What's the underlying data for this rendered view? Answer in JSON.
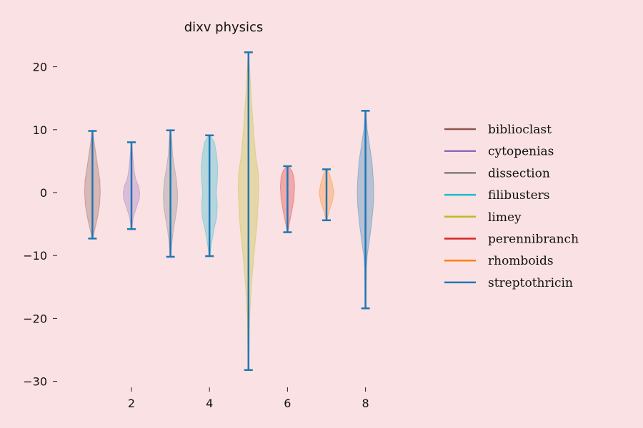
{
  "chart_data": {
    "type": "violin",
    "title": "dixv physics",
    "xlabel": "",
    "ylabel": "",
    "xlim": [
      0,
      10
    ],
    "ylim": [
      -30,
      22
    ],
    "x_ticks": [
      2,
      4,
      6,
      8
    ],
    "y_ticks": [
      20,
      10,
      0,
      -10,
      -20,
      -30
    ],
    "y_tick_labels": [
      "20",
      "10",
      "0",
      "−10",
      "−20",
      "−30"
    ],
    "grid": false,
    "legend_position": "right",
    "error_bar_color": "#1f77b4",
    "violins": [
      {
        "position": 1,
        "min": -7.3,
        "max": 9.8,
        "color": "#8c564b",
        "profile": [
          [
            -7.3,
            0.02
          ],
          [
            -6,
            0.15
          ],
          [
            -4,
            0.35
          ],
          [
            -2,
            0.5
          ],
          [
            0,
            0.55
          ],
          [
            2,
            0.52
          ],
          [
            4,
            0.38
          ],
          [
            6,
            0.25
          ],
          [
            8,
            0.12
          ],
          [
            9.8,
            0.02
          ]
        ]
      },
      {
        "position": 2,
        "min": -5.8,
        "max": 8.0,
        "color": "#9467bd",
        "profile": [
          [
            -5.8,
            0.02
          ],
          [
            -4,
            0.12
          ],
          [
            -2,
            0.4
          ],
          [
            -1,
            0.55
          ],
          [
            0,
            0.58
          ],
          [
            1,
            0.5
          ],
          [
            2,
            0.32
          ],
          [
            3,
            0.22
          ],
          [
            5,
            0.12
          ],
          [
            8.0,
            0.02
          ]
        ]
      },
      {
        "position": 3,
        "min": -10.2,
        "max": 9.9,
        "color": "#7f7f7f",
        "profile": [
          [
            -10.2,
            0.02
          ],
          [
            -8,
            0.1
          ],
          [
            -6,
            0.2
          ],
          [
            -4,
            0.35
          ],
          [
            -2,
            0.48
          ],
          [
            0,
            0.5
          ],
          [
            2,
            0.42
          ],
          [
            4,
            0.28
          ],
          [
            6,
            0.15
          ],
          [
            8,
            0.1
          ],
          [
            9.9,
            0.02
          ]
        ]
      },
      {
        "position": 4,
        "min": -10.1,
        "max": 9.1,
        "color": "#17becf",
        "profile": [
          [
            -10.1,
            0.02
          ],
          [
            -8,
            0.15
          ],
          [
            -6,
            0.3
          ],
          [
            -4,
            0.5
          ],
          [
            -2,
            0.55
          ],
          [
            0,
            0.48
          ],
          [
            2,
            0.55
          ],
          [
            4,
            0.58
          ],
          [
            6,
            0.5
          ],
          [
            8,
            0.35
          ],
          [
            9.1,
            0.05
          ]
        ]
      },
      {
        "position": 5,
        "min": -28.2,
        "max": 22.3,
        "color": "#bcbd22",
        "profile": [
          [
            -28.2,
            0.02
          ],
          [
            -24,
            0.05
          ],
          [
            -20,
            0.08
          ],
          [
            -15,
            0.2
          ],
          [
            -10,
            0.38
          ],
          [
            -5,
            0.6
          ],
          [
            0,
            0.72
          ],
          [
            3,
            0.7
          ],
          [
            6,
            0.5
          ],
          [
            10,
            0.35
          ],
          [
            15,
            0.2
          ],
          [
            19,
            0.1
          ],
          [
            22.3,
            0.02
          ]
        ]
      },
      {
        "position": 6,
        "min": -6.3,
        "max": 4.2,
        "color": "#d62728",
        "profile": [
          [
            -6.3,
            0.02
          ],
          [
            -5,
            0.12
          ],
          [
            -3,
            0.3
          ],
          [
            -1,
            0.45
          ],
          [
            1,
            0.5
          ],
          [
            2.5,
            0.45
          ],
          [
            3.5,
            0.3
          ],
          [
            4.2,
            0.05
          ]
        ]
      },
      {
        "position": 7,
        "min": -4.4,
        "max": 3.7,
        "color": "#ff7f0e",
        "profile": [
          [
            -4.4,
            0.02
          ],
          [
            -3,
            0.18
          ],
          [
            -1.5,
            0.4
          ],
          [
            0,
            0.52
          ],
          [
            1.5,
            0.4
          ],
          [
            3,
            0.2
          ],
          [
            3.7,
            0.03
          ]
        ]
      },
      {
        "position": 8,
        "min": -18.4,
        "max": 13.0,
        "color": "#1f77b4",
        "profile": [
          [
            -18.4,
            0.02
          ],
          [
            -15,
            0.04
          ],
          [
            -12,
            0.06
          ],
          [
            -10,
            0.12
          ],
          [
            -8,
            0.25
          ],
          [
            -5,
            0.42
          ],
          [
            -2,
            0.55
          ],
          [
            0,
            0.58
          ],
          [
            2,
            0.55
          ],
          [
            5,
            0.45
          ],
          [
            8,
            0.25
          ],
          [
            10,
            0.12
          ],
          [
            13.0,
            0.02
          ]
        ]
      }
    ],
    "legend": [
      {
        "label": "biblioclast",
        "color": "#8c564b"
      },
      {
        "label": "cytopenias",
        "color": "#9467bd"
      },
      {
        "label": "dissection",
        "color": "#7f7f7f"
      },
      {
        "label": "filibusters",
        "color": "#17becf"
      },
      {
        "label": "limey",
        "color": "#bcbd22"
      },
      {
        "label": "perennibranch",
        "color": "#d62728"
      },
      {
        "label": "rhomboids",
        "color": "#ff7f0e"
      },
      {
        "label": "streptothricin",
        "color": "#1f77b4"
      }
    ]
  }
}
